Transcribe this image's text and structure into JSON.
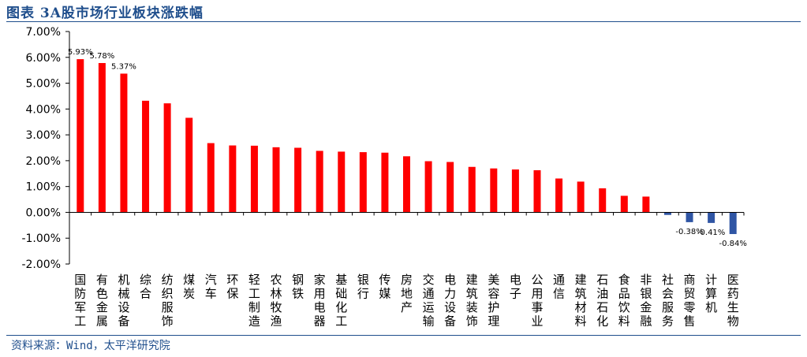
{
  "header": {
    "title": "图表 3A股市场行业板块涨跌幅"
  },
  "footer": {
    "source": "资料来源：Wind，太平洋研究院"
  },
  "colors": {
    "positive": "#ff0000",
    "negative": "#2f55a4",
    "frame": "#1f4e8c"
  },
  "chart_data": {
    "type": "bar",
    "title": "",
    "xlabel": "",
    "ylabel": "",
    "ylim": [
      -0.02,
      0.07
    ],
    "yticks": [
      "7.00%",
      "6.00%",
      "5.00%",
      "4.00%",
      "3.00%",
      "2.00%",
      "1.00%",
      "0.00%",
      "-1.00%",
      "-2.00%"
    ],
    "grid": false,
    "legend": "none",
    "categories": [
      "国防军工",
      "有色金属",
      "机械设备",
      "综合",
      "纺织服饰",
      "煤炭",
      "汽车",
      "环保",
      "轻工制造",
      "农林牧渔",
      "钢铁",
      "家用电器",
      "基础化工",
      "银行",
      "传媒",
      "房地产",
      "交通运输",
      "电力设备",
      "建筑装饰",
      "美容护理",
      "电子",
      "公用事业",
      "通信",
      "建筑材料",
      "石油石化",
      "食品饮料",
      "非银金融",
      "社会服务",
      "商贸零售",
      "计算机",
      "医药生物"
    ],
    "values": [
      0.0593,
      0.0578,
      0.0537,
      0.0432,
      0.0422,
      0.0366,
      0.0268,
      0.0259,
      0.0258,
      0.0252,
      0.025,
      0.0238,
      0.0235,
      0.0233,
      0.0231,
      0.0217,
      0.0198,
      0.0195,
      0.0176,
      0.017,
      0.0166,
      0.0163,
      0.0131,
      0.0119,
      0.0093,
      0.0064,
      0.0061,
      -0.001,
      -0.0038,
      -0.0041,
      -0.0084
    ],
    "data_labels": [
      {
        "index": 0,
        "text": "5.93%"
      },
      {
        "index": 1,
        "text": "5.78%"
      },
      {
        "index": 2,
        "text": "5.37%"
      },
      {
        "index": 28,
        "text": "-0.38%"
      },
      {
        "index": 29,
        "text": "-0.41%"
      },
      {
        "index": 30,
        "text": "-0.84%"
      }
    ]
  }
}
